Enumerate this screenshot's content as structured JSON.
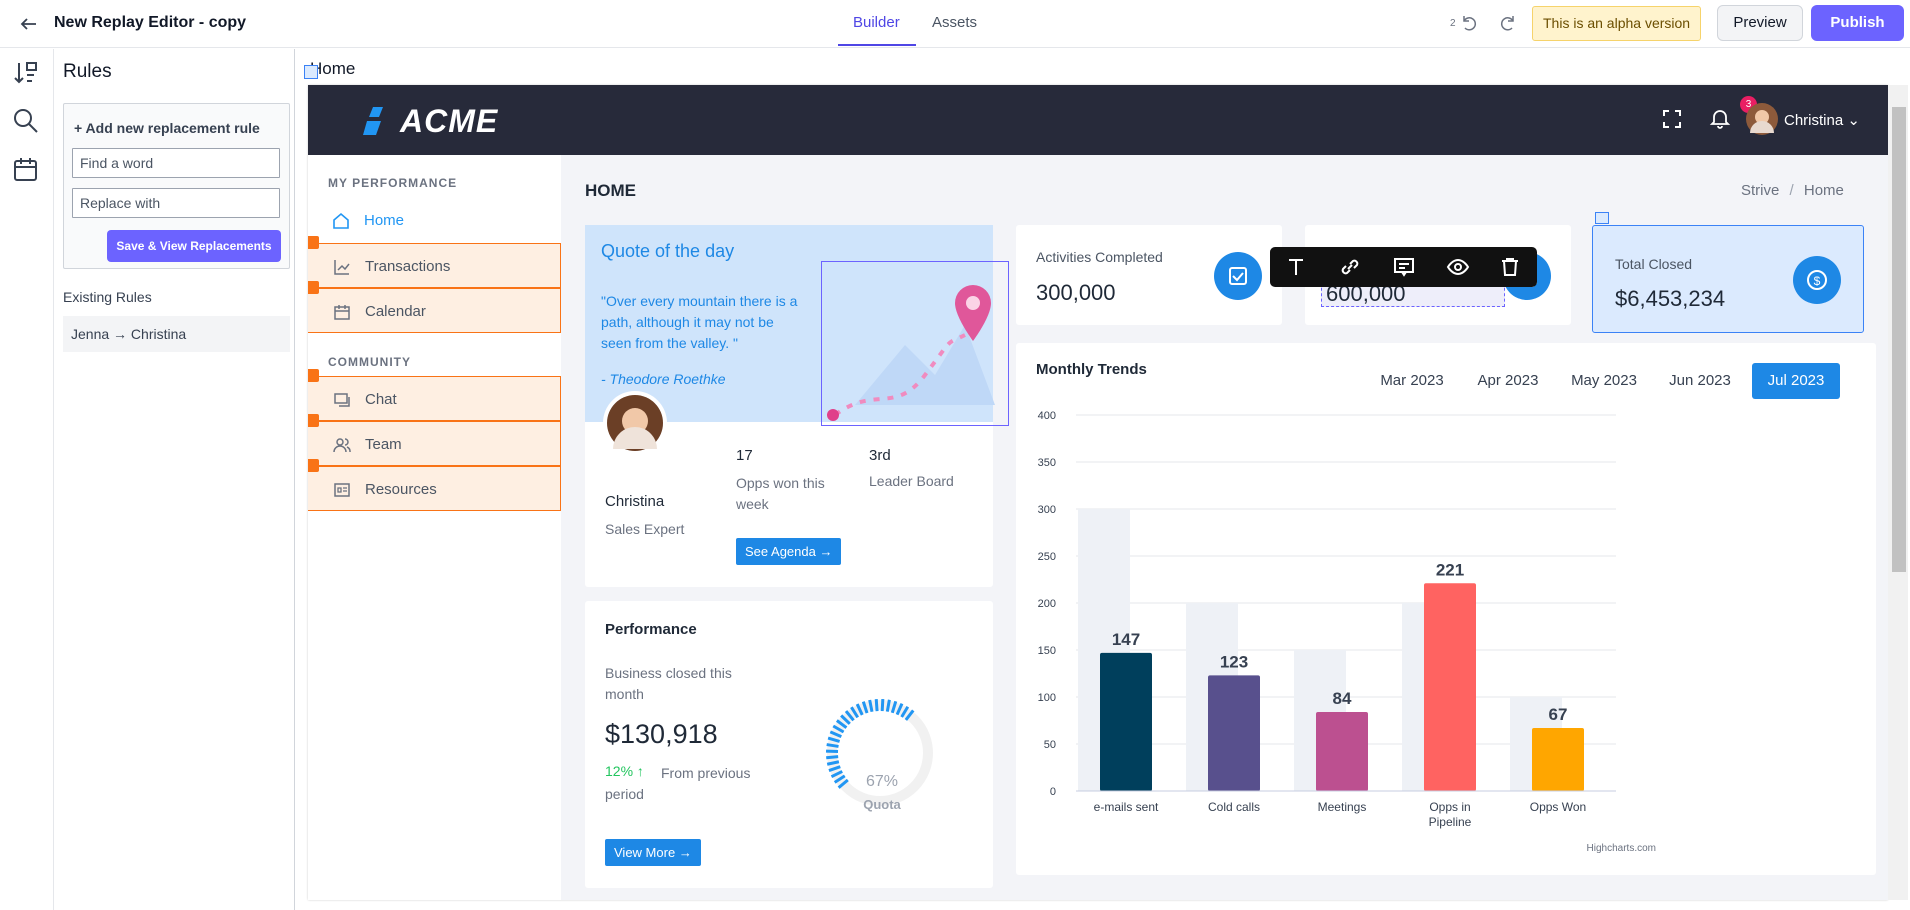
{
  "topbar": {
    "title": "New Replay Editor - copy",
    "tabs": [
      {
        "label": "Builder",
        "active": true
      },
      {
        "label": "Assets",
        "active": false
      }
    ],
    "undo_count": "2",
    "alpha_notice": "This is an alpha version",
    "preview_label": "Preview",
    "publish_label": "Publish"
  },
  "rules_panel": {
    "title": "Rules",
    "add_rule_heading": "+ Add new replacement rule",
    "find_placeholder": "Find a word",
    "replace_placeholder": "Replace with",
    "save_label": "Save & View Replacements",
    "existing_heading": "Existing Rules",
    "existing": [
      "Jenna → Christina"
    ]
  },
  "canvas": {
    "page_label": "Home"
  },
  "app": {
    "logo": "ACME",
    "notifications": "3",
    "user_name": "Christina",
    "nav": {
      "section1": "MY PERFORMANCE",
      "section2": "COMMUNITY",
      "items": [
        {
          "label": "Home",
          "icon": "home-icon"
        },
        {
          "label": "Transactions",
          "icon": "chart-line-icon"
        },
        {
          "label": "Calendar",
          "icon": "calendar-icon"
        },
        {
          "label": "Chat",
          "icon": "chat-icon"
        },
        {
          "label": "Team",
          "icon": "team-icon"
        },
        {
          "label": "Resources",
          "icon": "resources-icon"
        }
      ]
    },
    "page_title": "HOME",
    "breadcrumb": {
      "root": "Strive",
      "sep": "/",
      "current": "Home"
    },
    "quote": {
      "title": "Quote of the day",
      "text": "\"Over every mountain there is a path, although it may not be seen from the valley. \"",
      "author": "- Theodore Roethke"
    },
    "profile": {
      "name": "Christina",
      "role": "Sales Expert",
      "opps_value": "17",
      "opps_label": "Opps won this week",
      "rank_value": "3rd",
      "rank_label": "Leader Board",
      "agenda_label": "See Agenda"
    },
    "stats": [
      {
        "title": "Activities Completed",
        "value": "300,000"
      },
      {
        "title": "",
        "value": "600,000"
      },
      {
        "title": "Total Closed",
        "value": "$6,453,234"
      }
    ],
    "performance": {
      "title": "Performance",
      "subtitle": "Business closed this month",
      "value": "$130,918",
      "change": "12%",
      "change_label": "From previous period",
      "gauge_value": "67%",
      "gauge_label": "Quota",
      "gauge_fraction": 0.67,
      "button_label": "View More"
    },
    "trends": {
      "title": "Monthly Trends",
      "months": [
        {
          "label": "Mar 2023",
          "active": false
        },
        {
          "label": "Apr 2023",
          "active": false
        },
        {
          "label": "May 2023",
          "active": false
        },
        {
          "label": "Jun 2023",
          "active": false
        },
        {
          "label": "Jul 2023",
          "active": true
        }
      ],
      "credit": "Highcharts.com"
    },
    "colors": {
      "header": "#272a3a",
      "accent": "#1e88e5",
      "highlight": "#f97316"
    }
  },
  "chart_data": {
    "type": "bar",
    "categories": [
      "e-mails sent",
      "Cold calls",
      "Meetings",
      "Opps in Pipeline",
      "Opps Won"
    ],
    "series": [
      {
        "values": [
          300,
          200,
          150,
          200,
          100
        ]
      },
      {
        "values": [
          147,
          123,
          84,
          221,
          67
        ]
      }
    ],
    "colors": [
      "#003f5c",
      "#58508d",
      "#bc5090",
      "#ff6361",
      "#ffa600"
    ],
    "ylim": [
      0,
      400
    ],
    "yticks": [
      0,
      50,
      100,
      150,
      200,
      250,
      300,
      350,
      400
    ],
    "grid": true
  }
}
